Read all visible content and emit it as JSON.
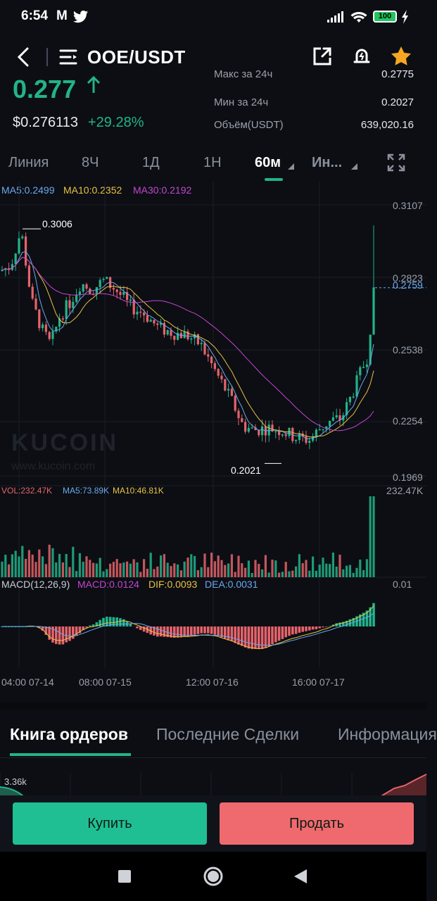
{
  "status_bar": {
    "time": "6:54",
    "mail_letter": "M",
    "battery": "100"
  },
  "header": {
    "pair": "OOE/USDT"
  },
  "price": {
    "last": "0.277",
    "usd": "$0.276113",
    "change": "+29.28%"
  },
  "stats": {
    "max_label": "Макс за 24ч",
    "max_value": "0.2775",
    "min_label": "Мин за 24ч",
    "min_value": "0.2027",
    "vol_label": "Объём(USDT)",
    "vol_value": "639,020.16"
  },
  "tabs": [
    {
      "label": "Линия"
    },
    {
      "label": "8Ч"
    },
    {
      "label": "1Д"
    },
    {
      "label": "1Н"
    },
    {
      "label": "60м"
    },
    {
      "label": "Ин..."
    }
  ],
  "indicators": {
    "ma5": "MA5:0.2499",
    "ma10": "MA10:0.2352",
    "ma30": "MA30:0.2192",
    "vol": "VOL:232.47K",
    "vol_ma5": "MA5:73.89K",
    "vol_ma10": "MA10:46.81K",
    "macd_title": "MACD(12,26,9)",
    "macd": "MACD:0.0124",
    "dif": "DIF:0.0093",
    "dea": "DEA:0.0031"
  },
  "colors": {
    "up": "#22b38a",
    "down": "#e5636b",
    "ma5": "#6aa9f0",
    "ma10": "#e8c244",
    "ma30": "#c445d0",
    "accent": "#22b38a"
  },
  "chart_data": {
    "type": "candlestick",
    "pair": "OOE/USDT",
    "interval": "60м",
    "y_axis_ticks": [
      "0.3107",
      "0.2823",
      "0.2538",
      "0.2254",
      "0.1969"
    ],
    "ylim": [
      0.1969,
      0.3107
    ],
    "high_label": "0.3006",
    "low_label": "0.2021",
    "last_price_label": "0.2759",
    "volume_axis_max": "232.47K",
    "macd_axis_max": "0.01",
    "x_ticks": [
      "04:00 07-14",
      "08:00 07-15",
      "12:00 07-16",
      "16:00 07-17"
    ],
    "series": [
      {
        "name": "MA5",
        "last": 0.2499
      },
      {
        "name": "MA10",
        "last": 0.2352
      },
      {
        "name": "MA30",
        "last": 0.2192
      }
    ]
  },
  "watermark": {
    "brand": "KUCOIN",
    "url": "www.kucoin.com"
  },
  "bottom_tabs": [
    {
      "label": "Книга ордеров"
    },
    {
      "label": "Последние Сделки"
    },
    {
      "label": "Информация"
    }
  ],
  "depth": {
    "left_label": "3.36k"
  },
  "actions": {
    "buy": "Купить",
    "sell": "Продать"
  }
}
